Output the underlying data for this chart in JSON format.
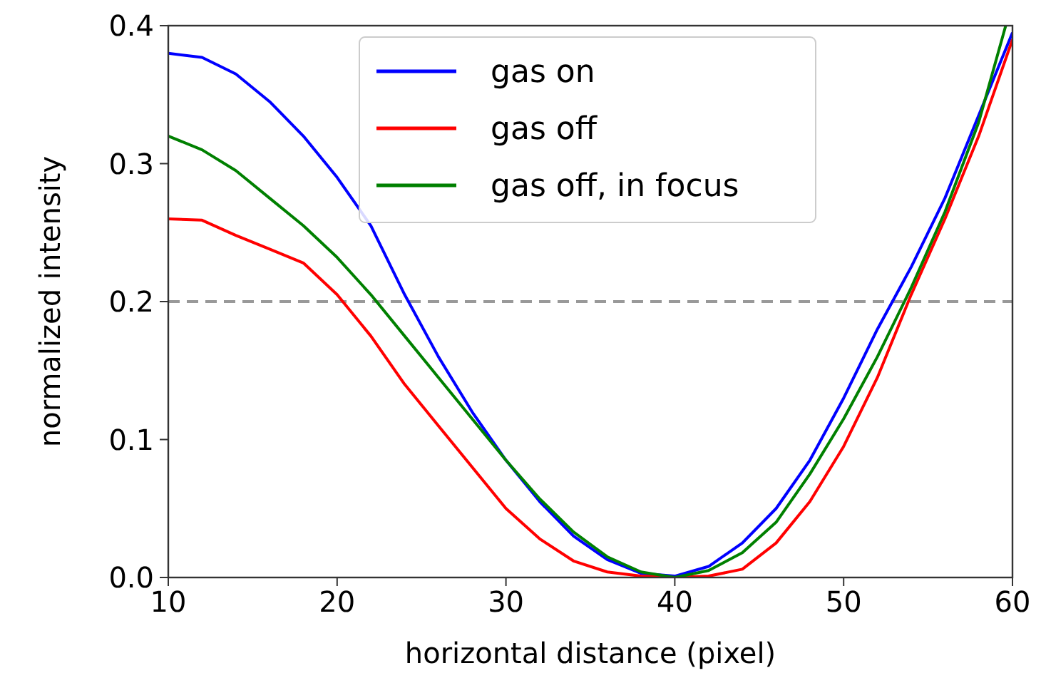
{
  "chart_data": {
    "type": "line",
    "xlabel": "horizontal distance (pixel)",
    "ylabel": "normalized intensity",
    "xlim": [
      10,
      60
    ],
    "ylim": [
      0,
      0.4
    ],
    "xticks": [
      10,
      20,
      30,
      40,
      50,
      60
    ],
    "yticks": [
      {
        "value": 0,
        "label": "0.0"
      },
      {
        "value": 0.1,
        "label": "0.1"
      },
      {
        "value": 0.2,
        "label": "0.2"
      },
      {
        "value": 0.3,
        "label": "0.3"
      },
      {
        "value": 0.4,
        "label": "0.4"
      }
    ],
    "legend": "top",
    "grid": false,
    "ref_lines": [
      {
        "axis": "y",
        "value": 0.2,
        "color": "#999999",
        "line_style": "dashed"
      }
    ],
    "x": [
      10,
      12,
      14,
      16,
      18,
      20,
      22,
      24,
      26,
      28,
      30,
      32,
      34,
      36,
      38,
      40,
      42,
      44,
      46,
      48,
      50,
      52,
      54,
      56,
      58,
      60
    ],
    "series": [
      {
        "name": "gas on",
        "color": "#0000ff",
        "values": [
          0.38,
          0.377,
          0.365,
          0.345,
          0.32,
          0.29,
          0.255,
          0.205,
          0.16,
          0.12,
          0.085,
          0.055,
          0.03,
          0.013,
          0.003,
          0.001,
          0.008,
          0.025,
          0.05,
          0.085,
          0.13,
          0.18,
          0.225,
          0.275,
          0.335,
          0.395
        ]
      },
      {
        "name": "gas off",
        "color": "#ff0000",
        "values": [
          0.26,
          0.259,
          0.248,
          0.238,
          0.228,
          0.205,
          0.175,
          0.14,
          0.11,
          0.08,
          0.05,
          0.028,
          0.012,
          0.004,
          0.001,
          0,
          0.001,
          0.006,
          0.025,
          0.055,
          0.095,
          0.145,
          0.205,
          0.26,
          0.32,
          0.39
        ]
      },
      {
        "name": "gas off, in focus",
        "color": "#008000",
        "x": [
          10,
          12,
          14,
          16,
          18,
          20,
          22,
          24,
          26,
          28,
          30,
          32,
          34,
          36,
          38,
          40,
          42,
          44,
          46,
          48,
          50,
          52,
          54,
          56,
          58,
          59.6
        ],
        "values": [
          0.32,
          0.31,
          0.295,
          0.275,
          0.255,
          0.232,
          0.205,
          0.175,
          0.145,
          0.115,
          0.085,
          0.057,
          0.033,
          0.015,
          0.004,
          0,
          0.005,
          0.018,
          0.04,
          0.075,
          0.115,
          0.16,
          0.21,
          0.265,
          0.33,
          0.4
        ]
      }
    ]
  }
}
